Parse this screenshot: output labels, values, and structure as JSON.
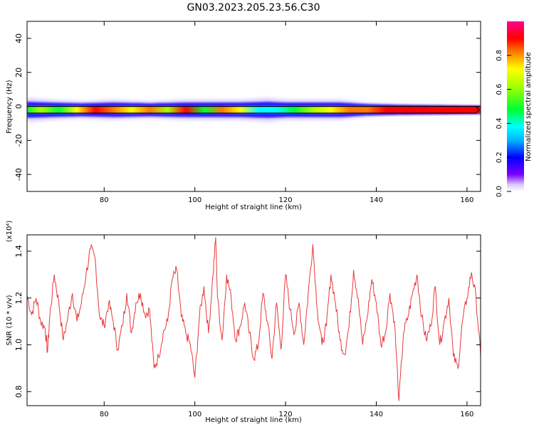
{
  "figure": {
    "title": "GN03.2023.205.23.56.C30"
  },
  "chart_data": [
    {
      "type": "heatmap",
      "xlabel": "Height of straight line (km)",
      "ylabel": "Frequency (Hz)",
      "xlim": [
        63,
        163
      ],
      "ylim": [
        -50,
        50
      ],
      "xticks": [
        80,
        100,
        120,
        140,
        160
      ],
      "yticks": [
        40,
        20,
        0,
        -20,
        -40
      ],
      "tick_labels_x": [
        "80",
        "100",
        "120",
        "140",
        "160"
      ],
      "tick_labels_y": [
        "40",
        "20",
        "0",
        "-20",
        "-40"
      ],
      "band_center_hz": -2,
      "band_halfwidth_hz": 2,
      "amplitude_profile": {
        "x": [
          63,
          66,
          70,
          74,
          78,
          82,
          86,
          90,
          94,
          98,
          102,
          106,
          110,
          114,
          118,
          122,
          126,
          130,
          134,
          138,
          142,
          146,
          150,
          154,
          158,
          162
        ],
        "values": [
          0.55,
          0.7,
          0.6,
          0.75,
          0.9,
          0.85,
          0.8,
          0.88,
          0.7,
          0.9,
          0.6,
          0.85,
          0.75,
          0.4,
          0.45,
          0.5,
          0.7,
          0.8,
          0.85,
          0.88,
          0.9,
          0.92,
          0.93,
          0.95,
          0.95,
          0.95
        ]
      },
      "halo_profile": {
        "x": [
          63,
          68,
          75,
          82,
          90,
          98,
          104,
          110,
          116,
          120,
          126,
          132,
          138,
          146,
          155,
          163
        ],
        "values": [
          6,
          5,
          4,
          5,
          4,
          5,
          5,
          5,
          6,
          5,
          5,
          5,
          3,
          2,
          1.5,
          1
        ]
      },
      "colorbar": {
        "label": "Normalized spectral amplitude",
        "range": [
          0,
          1
        ],
        "ticks": [
          0.0,
          0.2,
          0.4,
          0.6,
          0.8
        ],
        "tick_labels": [
          "0.0",
          "0.2",
          "0.4",
          "0.6",
          "0.8"
        ]
      }
    },
    {
      "type": "line",
      "xlabel": "Height of straight line (km)",
      "ylabel": "SNR (10 * v/v)",
      "yscale_label": "(x10⁴)",
      "xlim": [
        63,
        163
      ],
      "ylim": [
        0.74,
        1.47
      ],
      "xticks": [
        80,
        100,
        120,
        140,
        160
      ],
      "yticks": [
        0.8,
        1.0,
        1.2,
        1.4
      ],
      "tick_labels_x": [
        "80",
        "100",
        "120",
        "140",
        "160"
      ],
      "tick_labels_y": [
        "0.8",
        "1.0",
        "1.2",
        "1.4"
      ],
      "color": "#e8383b",
      "series": [
        {
          "x": [
            63,
            64,
            65,
            66,
            67,
            67.5,
            68,
            69,
            70,
            71,
            72,
            73,
            74,
            75,
            76,
            77,
            78,
            79,
            80,
            81,
            82,
            83,
            84,
            85,
            86,
            87,
            88,
            89,
            90,
            91,
            92,
            93,
            94,
            95,
            96,
            97,
            98,
            99,
            100,
            101,
            102,
            103,
            104,
            104.6,
            105,
            106,
            107,
            108,
            109,
            110,
            111,
            112,
            113,
            114,
            115,
            116,
            117,
            118,
            119,
            120,
            121,
            122,
            123,
            124,
            125,
            126,
            127,
            128,
            129,
            130,
            131,
            132,
            133,
            134,
            135,
            136,
            137,
            138,
            139,
            140,
            141,
            142,
            143,
            144,
            145,
            146,
            147,
            148,
            149,
            150,
            151,
            152,
            153,
            154,
            155,
            156,
            157,
            158,
            159,
            160,
            161,
            162,
            163
          ],
          "values": [
            1.21,
            1.13,
            1.2,
            1.1,
            1.07,
            0.97,
            1.12,
            1.3,
            1.18,
            1.02,
            1.12,
            1.22,
            1.1,
            1.18,
            1.3,
            1.41,
            1.37,
            1.12,
            1.08,
            1.18,
            1.1,
            0.98,
            1.08,
            1.22,
            1.05,
            1.18,
            1.22,
            1.13,
            1.15,
            0.9,
            0.95,
            1.05,
            1.1,
            1.28,
            1.32,
            1.12,
            1.05,
            1.0,
            0.86,
            1.12,
            1.25,
            1.05,
            1.3,
            1.46,
            1.2,
            1.02,
            1.3,
            1.2,
            1.02,
            1.08,
            1.18,
            1.05,
            0.94,
            1.0,
            1.22,
            1.1,
            0.94,
            1.18,
            0.98,
            1.3,
            1.15,
            1.05,
            1.18,
            1.0,
            1.22,
            1.43,
            1.15,
            1.0,
            1.08,
            1.3,
            1.18,
            1.02,
            0.96,
            1.08,
            1.32,
            1.2,
            1.0,
            1.12,
            1.28,
            1.18,
            1.0,
            1.05,
            1.22,
            1.1,
            0.76,
            1.05,
            1.12,
            1.22,
            1.3,
            1.12,
            1.02,
            1.08,
            1.25,
            1.0,
            1.1,
            1.2,
            0.95,
            0.9,
            1.1,
            1.2,
            1.31,
            1.2,
            0.95
          ]
        }
      ]
    }
  ]
}
